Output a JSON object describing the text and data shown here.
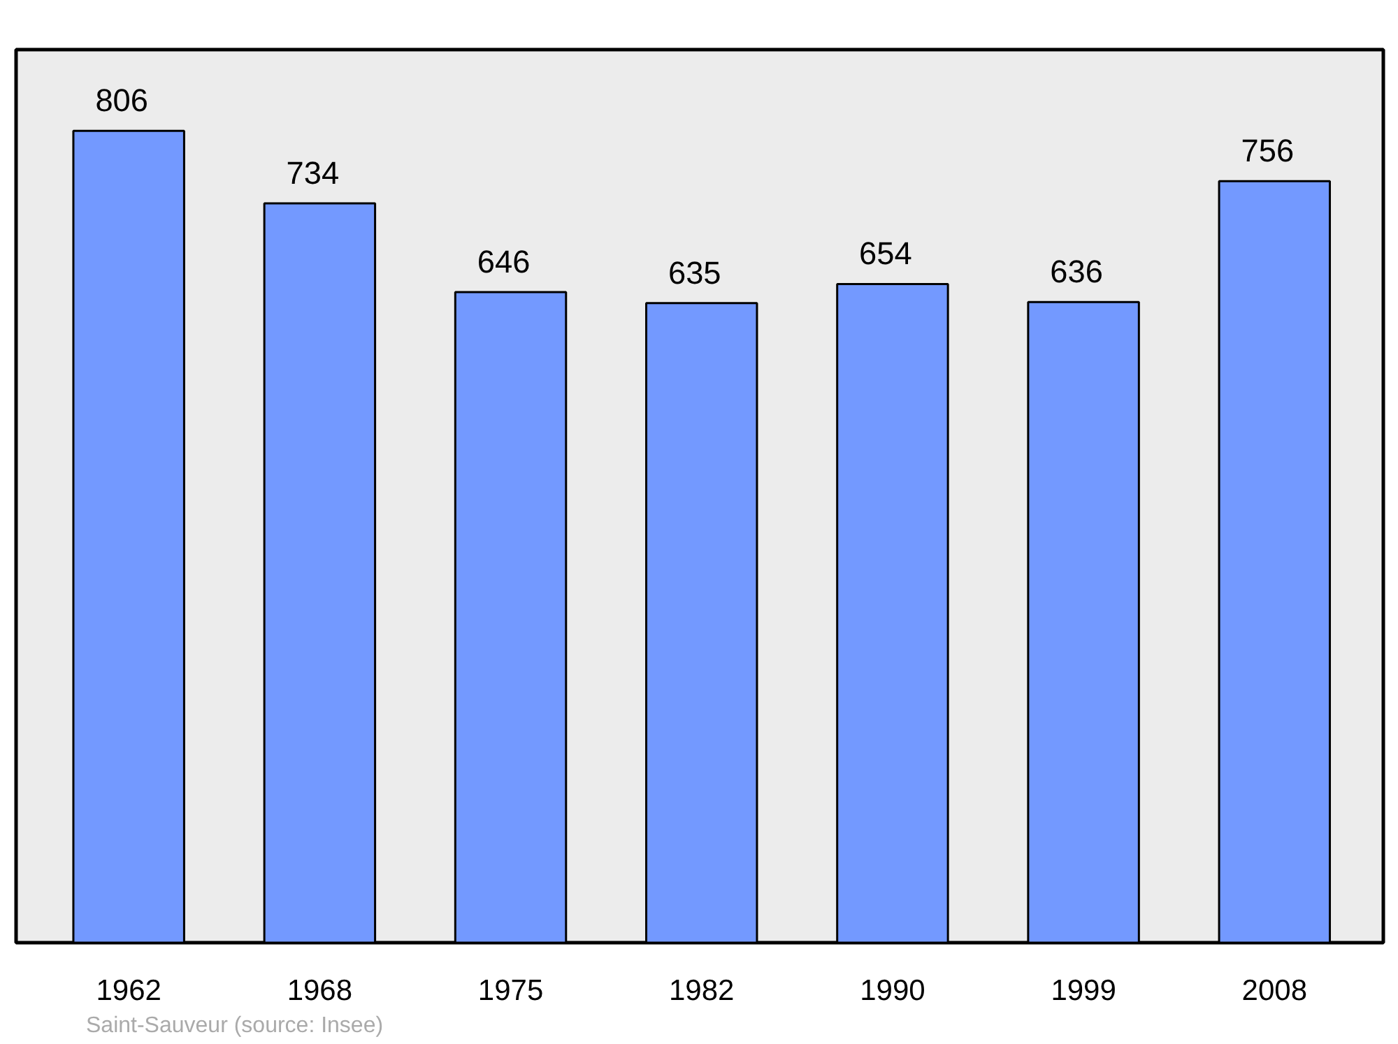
{
  "chart_data": {
    "type": "bar",
    "categories": [
      "1962",
      "1968",
      "1975",
      "1982",
      "1990",
      "1999",
      "2008"
    ],
    "values": [
      806,
      734,
      646,
      635,
      654,
      636,
      756
    ],
    "color": "#7399ff",
    "data_labels": true,
    "grid": false,
    "annotations": [
      "Saint-Sauveur    (source: Insee)"
    ]
  }
}
